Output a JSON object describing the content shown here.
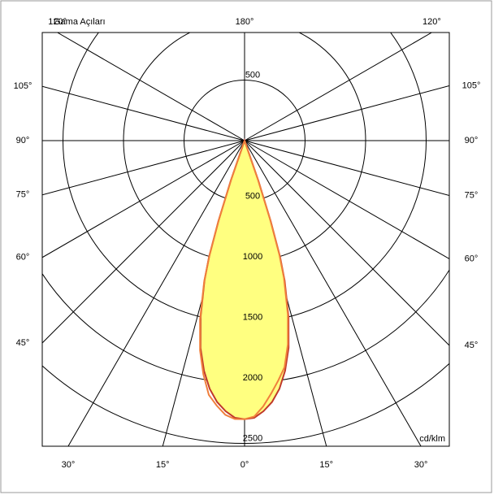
{
  "chart_data": {
    "type": "polar",
    "title": "Gama Açıları",
    "unit": "cd/klm",
    "rlim": [
      0,
      2500
    ],
    "rticks": [
      500,
      1000,
      1500,
      2000,
      2500
    ],
    "angle_ticks": [
      {
        "value": -120,
        "label": "120°"
      },
      {
        "value": -105,
        "label": "105°"
      },
      {
        "value": -90,
        "label": "90°"
      },
      {
        "value": -75,
        "label": "75°"
      },
      {
        "value": -60,
        "label": "60°"
      },
      {
        "value": -45,
        "label": "45°"
      },
      {
        "value": -30,
        "label": "30°"
      },
      {
        "value": -15,
        "label": "15°"
      },
      {
        "value": 0,
        "label": "0°"
      },
      {
        "value": 15,
        "label": "15°"
      },
      {
        "value": 30,
        "label": "30°"
      },
      {
        "value": 45,
        "label": "45°"
      },
      {
        "value": 60,
        "label": "60°"
      },
      {
        "value": 75,
        "label": "75°"
      },
      {
        "value": 90,
        "label": "90°"
      },
      {
        "value": 105,
        "label": "105°"
      },
      {
        "value": 120,
        "label": "120°"
      },
      {
        "value": 180,
        "label": "180°"
      }
    ],
    "x": [
      -20,
      -19,
      -18,
      -17,
      -16,
      -14,
      -12,
      -10,
      -8,
      -6,
      -4,
      -2,
      0,
      2,
      4,
      6,
      8,
      10,
      12,
      14,
      16,
      17,
      18,
      19,
      20
    ],
    "series": [
      {
        "color": "#c0392b",
        "fill": "#ffff80",
        "values": [
          0,
          350,
          700,
          1000,
          1200,
          1500,
          1750,
          1930,
          2070,
          2170,
          2240,
          2290,
          2300,
          2290,
          2240,
          2170,
          2070,
          1930,
          1750,
          1500,
          1200,
          1000,
          700,
          350,
          0
        ]
      },
      {
        "color": "#f07f3c",
        "values": [
          0,
          330,
          690,
          990,
          1210,
          1520,
          1770,
          1960,
          2120,
          2200,
          2270,
          2300,
          2300,
          2280,
          2200,
          2100,
          2000,
          1900,
          1720,
          1480,
          1180,
          980,
          680,
          340,
          0
        ]
      }
    ]
  }
}
